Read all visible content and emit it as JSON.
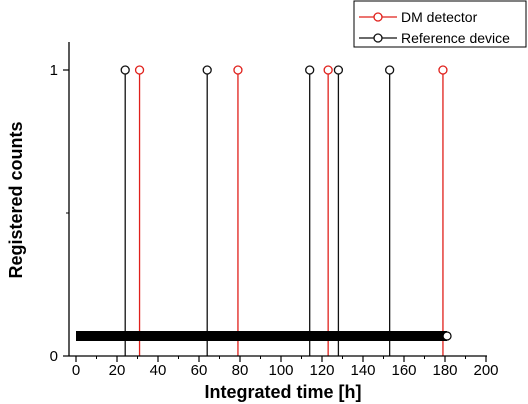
{
  "chart_data": {
    "type": "line",
    "title": "",
    "xlabel": "Integrated time [h]",
    "ylabel": "Registered counts",
    "xlim": [
      0,
      200
    ],
    "ylim": [
      0,
      1.1
    ],
    "x_ticks": [
      0,
      20,
      40,
      60,
      80,
      100,
      120,
      140,
      160,
      180,
      200
    ],
    "y_ticks": [
      0,
      1
    ],
    "legend_position": "top-right",
    "series": [
      {
        "name": "DM detector",
        "color": "#e0201b",
        "marker": "open-circle",
        "style": "impulse",
        "x": [
          31,
          79,
          123,
          179
        ],
        "y": [
          1,
          1,
          1,
          1
        ]
      },
      {
        "name": "Reference device",
        "color": "#111111",
        "marker": "open-circle",
        "style": "impulse",
        "x": [
          24,
          64,
          114,
          128,
          153
        ],
        "y": [
          1,
          1,
          1,
          1,
          1
        ]
      }
    ],
    "baseline_band": {
      "color": "#000000",
      "x": [
        0,
        181
      ],
      "y": [
        0,
        0
      ]
    }
  }
}
